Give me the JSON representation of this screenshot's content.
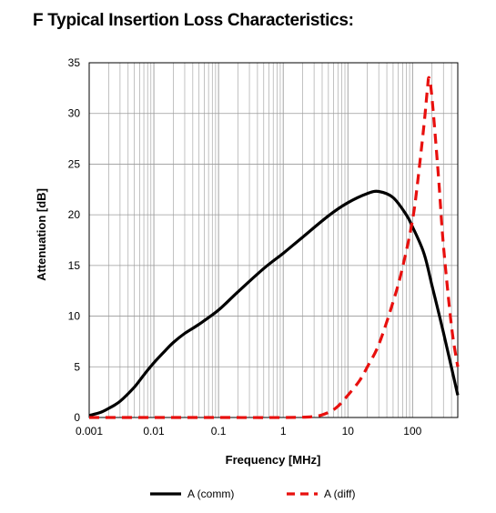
{
  "heading": "F Typical Insertion Loss Characteristics:",
  "chart_data": {
    "type": "line",
    "title": "F Typical Insertion Loss Characteristics:",
    "xlabel": "Frequency [MHz]",
    "ylabel": "Attenuation [dB]",
    "xscale": "log",
    "xlim": [
      0.001,
      500
    ],
    "ylim": [
      0,
      35
    ],
    "xticks": [
      "0.001",
      "0.01",
      "0.1",
      "1",
      "10",
      "100"
    ],
    "yticks": [
      "0",
      "5",
      "10",
      "15",
      "20",
      "25",
      "30",
      "35"
    ],
    "grid": "on",
    "legend_position": "bottom",
    "series": [
      {
        "name": "A (comm)",
        "color": "#000000",
        "style": "solid",
        "x": [
          0.001,
          0.0015,
          0.002,
          0.003,
          0.005,
          0.007,
          0.01,
          0.015,
          0.02,
          0.03,
          0.05,
          0.1,
          0.2,
          0.5,
          1,
          2,
          5,
          10,
          20,
          30,
          50,
          80,
          100,
          150,
          200,
          300,
          500
        ],
        "y": [
          0.2,
          0.5,
          0.9,
          1.6,
          3.0,
          4.2,
          5.4,
          6.6,
          7.4,
          8.3,
          9.2,
          10.6,
          12.4,
          14.7,
          16.2,
          17.8,
          19.9,
          21.2,
          22.1,
          22.3,
          21.7,
          20.0,
          18.8,
          16.2,
          13.0,
          8.4,
          2.2
        ]
      },
      {
        "name": "A (diff)",
        "color": "#e8100e",
        "style": "dashed",
        "x": [
          0.001,
          0.01,
          0.1,
          1,
          3,
          5,
          7,
          10,
          15,
          20,
          30,
          50,
          70,
          100,
          120,
          150,
          170,
          180,
          200,
          250,
          300,
          400,
          500
        ],
        "y": [
          0,
          0,
          0,
          0,
          0.1,
          0.5,
          1.1,
          2.2,
          3.6,
          5.0,
          7.2,
          11.4,
          14.8,
          19.5,
          23.3,
          28.8,
          32.5,
          33.5,
          31.5,
          24.0,
          17.0,
          9.0,
          5.0
        ]
      }
    ]
  }
}
